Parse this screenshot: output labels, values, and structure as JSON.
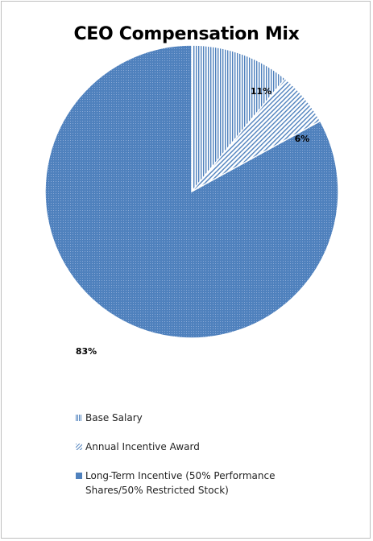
{
  "chart_data": {
    "type": "pie",
    "title": "CEO Compensation Mix",
    "slices": [
      {
        "name": "Base Salary",
        "value": 11,
        "label": "11%",
        "color": "#4f81bd",
        "pattern": "vertical"
      },
      {
        "name": "Annual Incentive Award",
        "value": 6,
        "label": "6%",
        "color": "#4f81bd",
        "pattern": "diagonal"
      },
      {
        "name": "Long-Term Incentive (50% Performance Shares/50% Restricted Stock)",
        "value": 83,
        "label": "83%",
        "color": "#4f81bd",
        "pattern": "dotted"
      }
    ],
    "legend_position": "bottom"
  }
}
